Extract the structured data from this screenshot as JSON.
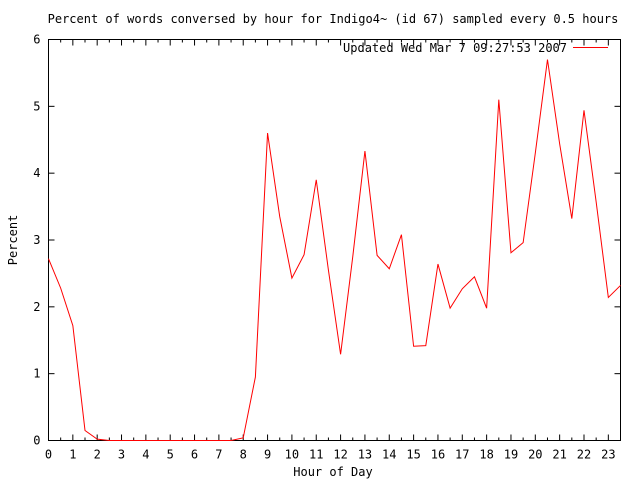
{
  "chart_data": {
    "type": "line",
    "title": "Percent of words conversed by hour for Indigo4~ (id 67) sampled every 0.5 hours",
    "xlabel": "Hour of Day",
    "ylabel": "Percent",
    "xlim": [
      0,
      23.5
    ],
    "ylim": [
      0,
      6
    ],
    "x_ticks": [
      "0",
      "1",
      "2",
      "3",
      "4",
      "5",
      "6",
      "7",
      "8",
      "9",
      "10",
      "11",
      "12",
      "13",
      "14",
      "15",
      "16",
      "17",
      "18",
      "19",
      "20",
      "21",
      "22",
      "23"
    ],
    "y_ticks": [
      "0",
      "1",
      "2",
      "3",
      "4",
      "5",
      "6"
    ],
    "grid": false,
    "legend_position": "top-right",
    "series": [
      {
        "name": "Updated Wed Mar  7 09:27:53 2007",
        "color": "#ff0000",
        "x": [
          0,
          0.5,
          1,
          1.5,
          2,
          2.5,
          3,
          3.5,
          4,
          4.5,
          5,
          5.5,
          6,
          6.5,
          7,
          7.5,
          8,
          8.5,
          9,
          9.5,
          10,
          10.5,
          11,
          11.5,
          12,
          12.5,
          13,
          13.5,
          14,
          14.5,
          15,
          15.5,
          16,
          16.5,
          17,
          17.5,
          18,
          18.5,
          19,
          19.5,
          20,
          20.5,
          21,
          21.5,
          22,
          22.5,
          23,
          23.5
        ],
        "values": [
          2.72,
          2.28,
          1.72,
          0.15,
          0.02,
          0,
          0,
          0,
          0,
          0,
          0,
          0,
          0,
          0,
          0,
          0,
          0.04,
          0.95,
          4.6,
          3.35,
          2.43,
          2.78,
          3.9,
          2.55,
          1.29,
          2.75,
          4.33,
          2.77,
          2.57,
          3.08,
          1.41,
          1.42,
          2.64,
          1.98,
          2.27,
          2.45,
          1.98,
          5.1,
          2.81,
          2.96,
          4.3,
          5.7,
          4.44,
          3.32,
          4.94,
          3.57,
          2.14,
          2.32
        ]
      }
    ]
  }
}
